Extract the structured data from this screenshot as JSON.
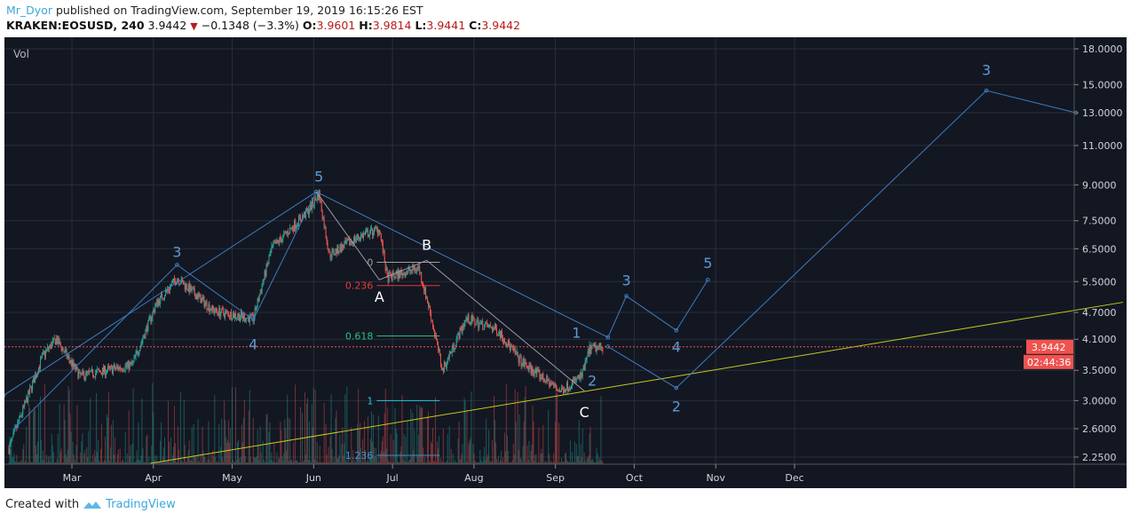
{
  "header": {
    "user": "Mr_Dyor",
    "published": "published on TradingView.com, September 19, 2019 16:15:26 EST",
    "symbol": "KRAKEN:EOSUSD, 240",
    "last": "3.9442",
    "change": "−0.1348 (−3.3%)",
    "o_label": "O:",
    "o": "3.9601",
    "h_label": "H:",
    "h": "3.9814",
    "l_label": "L:",
    "l": "3.9441",
    "c_label": "C:",
    "c": "3.9442"
  },
  "footer": {
    "created": "Created with",
    "brand": "TradingView"
  },
  "colors": {
    "bg": "#131722",
    "up": "#26a69a",
    "down": "#ef5350",
    "wave": "#5b9bd5",
    "trend": "#c8c820",
    "grid": "#2a2e39",
    "price_tag": "#ef5350"
  },
  "chart_data": {
    "type": "candlestick",
    "pane_label": "Vol",
    "y_scale": "log",
    "ylim": [
      2.2,
      19
    ],
    "y_ticks": [
      "18.0000",
      "15.0000",
      "13.0000",
      "11.0000",
      "9.0000",
      "7.5000",
      "6.5000",
      "5.5000",
      "4.7000",
      "4.1000",
      "3.5000",
      "3.0000",
      "2.6000",
      "2.2500"
    ],
    "x_ticks": [
      {
        "label": "Mar",
        "date": "2019-03-01"
      },
      {
        "label": "Apr",
        "date": "2019-04-01"
      },
      {
        "label": "May",
        "date": "2019-05-01"
      },
      {
        "label": "Jun",
        "date": "2019-06-01"
      },
      {
        "label": "Jul",
        "date": "2019-07-01"
      },
      {
        "label": "Aug",
        "date": "2019-08-01"
      },
      {
        "label": "Sep",
        "date": "2019-09-01"
      },
      {
        "label": "Oct",
        "date": "2019-10-01"
      },
      {
        "label": "Nov",
        "date": "2019-11-01"
      },
      {
        "label": "Dec",
        "date": "2019-12-01"
      }
    ],
    "current_price": "3.9442",
    "countdown": "02:44:36",
    "price_path": [
      [
        "2019-02-05",
        2.35
      ],
      [
        "2019-02-18",
        3.78
      ],
      [
        "2019-02-23",
        4.1
      ],
      [
        "2019-03-04",
        3.4
      ],
      [
        "2019-03-24",
        3.6
      ],
      [
        "2019-04-02",
        4.9
      ],
      [
        "2019-04-10",
        5.6
      ],
      [
        "2019-04-24",
        4.74
      ],
      [
        "2019-05-09",
        4.55
      ],
      [
        "2019-05-16",
        6.5
      ],
      [
        "2019-05-30",
        7.9
      ],
      [
        "2019-06-03",
        8.6
      ],
      [
        "2019-06-07",
        6.3
      ],
      [
        "2019-06-18",
        6.9
      ],
      [
        "2019-06-26",
        7.2
      ],
      [
        "2019-06-29",
        5.6
      ],
      [
        "2019-07-11",
        5.9
      ],
      [
        "2019-07-15",
        4.8
      ],
      [
        "2019-07-20",
        3.5
      ],
      [
        "2019-07-29",
        4.55
      ],
      [
        "2019-08-10",
        4.3
      ],
      [
        "2019-08-19",
        3.65
      ],
      [
        "2019-09-03",
        3.15
      ],
      [
        "2019-09-11",
        3.4
      ],
      [
        "2019-09-14",
        3.9
      ],
      [
        "2019-09-19",
        3.94
      ]
    ],
    "trendline": [
      [
        "2019-03-31",
        2.18
      ],
      [
        "2020-04-04",
        4.95
      ]
    ],
    "wave_lines": [
      [
        [
          "2019-02-03",
          3.08
        ],
        [
          "2019-06-02",
          8.69
        ],
        [
          "2019-09-21",
          4.14
        ]
      ],
      [
        [
          "2019-02-08",
          2.63
        ],
        [
          "2019-04-10",
          5.99
        ],
        [
          "2019-05-09",
          4.53
        ],
        [
          "2019-06-02",
          8.69
        ]
      ],
      [
        [
          "2019-09-21",
          4.14
        ],
        [
          "2019-09-28",
          5.11
        ],
        [
          "2019-10-17",
          4.29
        ],
        [
          "2019-10-29",
          5.55
        ]
      ],
      [
        [
          "2019-09-21",
          3.95
        ],
        [
          "2019-10-17",
          3.2
        ],
        [
          "2020-02-12",
          14.55
        ],
        [
          "2020-03-17",
          13.0
        ]
      ]
    ],
    "abc_line": [
      [
        "2019-06-02",
        8.69
      ],
      [
        "2019-06-26",
        5.55
      ],
      [
        "2019-07-14",
        6.13
      ],
      [
        "2019-09-12",
        3.15
      ]
    ],
    "wave_labels": [
      {
        "text": "3",
        "date": "2019-04-10",
        "price": 6.4,
        "color": "wave"
      },
      {
        "text": "4",
        "date": "2019-05-09",
        "price": 4.0,
        "color": "wave"
      },
      {
        "text": "5",
        "date": "2019-06-03",
        "price": 9.4,
        "color": "wave"
      },
      {
        "text": "1",
        "date": "2019-09-09",
        "price": 4.25,
        "color": "wave"
      },
      {
        "text": "2",
        "date": "2019-09-15",
        "price": 3.33,
        "color": "wave"
      },
      {
        "text": "3",
        "date": "2019-09-28",
        "price": 5.55,
        "color": "wave"
      },
      {
        "text": "4",
        "date": "2019-10-17",
        "price": 3.95,
        "color": "wave"
      },
      {
        "text": "5",
        "date": "2019-10-29",
        "price": 6.05,
        "color": "wave"
      },
      {
        "text": "2",
        "date": "2019-10-17",
        "price": 2.92,
        "color": "wave"
      },
      {
        "text": "3",
        "date": "2020-02-12",
        "price": 16.2,
        "color": "wave"
      },
      {
        "text": "A",
        "date": "2019-06-26",
        "price": 5.1,
        "color": "white"
      },
      {
        "text": "B",
        "date": "2019-07-14",
        "price": 6.65,
        "color": "white"
      },
      {
        "text": "C",
        "date": "2019-09-12",
        "price": 2.83,
        "color": "white"
      }
    ],
    "fib": {
      "start": "2019-06-25",
      "end": "2019-07-19",
      "levels": [
        {
          "label": "0",
          "price": 6.07,
          "color": "#9e9e9e"
        },
        {
          "label": "0.236",
          "price": 5.39,
          "color": "#e53935"
        },
        {
          "label": "0.618",
          "price": 4.17,
          "color": "#26c281"
        },
        {
          "label": "1",
          "price": 3.0,
          "color": "#26c6da"
        },
        {
          "label": "1.236",
          "price": 2.27,
          "color": "#3f8fd0"
        }
      ]
    }
  }
}
